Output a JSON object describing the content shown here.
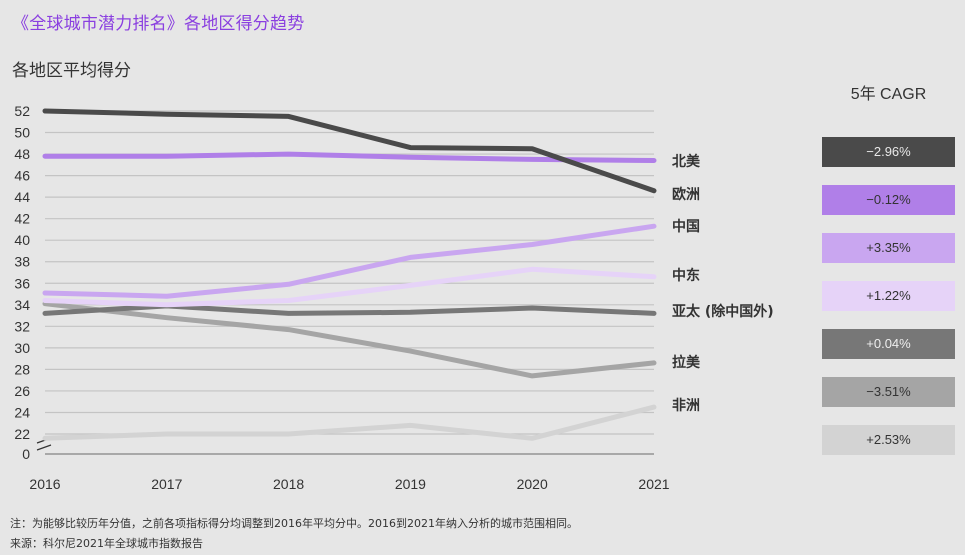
{
  "header": {
    "title": "《全球城市潜力排名》各地区得分趋势",
    "subtitle": "各地区平均得分"
  },
  "cagr": {
    "header": "5年 CAGR",
    "items": [
      {
        "region": "北美",
        "value": "−2.96%",
        "bg": "#4a4a4a",
        "fg": "#e8e8e8"
      },
      {
        "region": "欧洲",
        "value": "−0.12%",
        "bg": "#b07fe8",
        "fg": "#333333"
      },
      {
        "region": "中国",
        "value": "+3.35%",
        "bg": "#c9a6f0",
        "fg": "#333333"
      },
      {
        "region": "中东",
        "value": "+1.22%",
        "bg": "#e6d3f8",
        "fg": "#333333"
      },
      {
        "region": "亚太 (除中国外)",
        "value": "+0.04%",
        "bg": "#777777",
        "fg": "#eeeeee"
      },
      {
        "region": "拉美",
        "value": "−3.51%",
        "bg": "#a5a5a5",
        "fg": "#333333"
      },
      {
        "region": "非洲",
        "value": "+2.53%",
        "bg": "#d3d3d3",
        "fg": "#333333"
      }
    ]
  },
  "footer": {
    "note": "注：为能够比较历年分值，之前各项指标得分均调整到2016年平均分中。2016到2021年纳入分析的城市范围相同。",
    "source": "来源：科尔尼2021年全球城市指数报告"
  },
  "chart_data": {
    "type": "line",
    "title": "《全球城市潜力排名》各地区得分趋势",
    "subtitle": "各地区平均得分",
    "xlabel": "",
    "ylabel": "",
    "x": [
      "2016",
      "2017",
      "2018",
      "2019",
      "2020",
      "2021"
    ],
    "yticks": [
      "52",
      "50",
      "48",
      "46",
      "44",
      "42",
      "40",
      "38",
      "36",
      "34",
      "32",
      "30",
      "28",
      "26",
      "24",
      "22",
      "0"
    ],
    "ylim": [
      22,
      52
    ],
    "axis_break": "between 0 and 22",
    "grid": true,
    "legend": "direct labels at line ends (right)",
    "series": [
      {
        "name": "北美",
        "color": "#4a4a4a",
        "values": [
          52.0,
          51.7,
          51.5,
          48.6,
          48.5,
          44.6
        ],
        "label_offset": 0
      },
      {
        "name": "欧洲",
        "color": "#b07fe8",
        "values": [
          47.8,
          47.8,
          48.0,
          47.7,
          47.5,
          47.4
        ],
        "label_offset": 0
      },
      {
        "name": "中国",
        "color": "#c9a6f0",
        "values": [
          35.1,
          34.8,
          35.9,
          38.4,
          39.6,
          41.3
        ],
        "label_offset": 0
      },
      {
        "name": "中东",
        "color": "#e6d3f8",
        "values": [
          34.4,
          34.0,
          34.4,
          35.8,
          37.3,
          36.6
        ],
        "label_offset": 0
      },
      {
        "name": "亚太 (除中国外)",
        "color": "#777777",
        "values": [
          33.2,
          33.9,
          33.2,
          33.3,
          33.7,
          33.2
        ],
        "label_offset": 0
      },
      {
        "name": "拉美",
        "color": "#a5a5a5",
        "values": [
          34.1,
          32.8,
          31.7,
          29.7,
          27.4,
          28.6
        ],
        "label_offset": 0
      },
      {
        "name": "非洲",
        "color": "#d3d3d3",
        "values": [
          21.6,
          22.0,
          22.0,
          22.8,
          21.6,
          24.5
        ],
        "label_offset": 0
      }
    ]
  }
}
